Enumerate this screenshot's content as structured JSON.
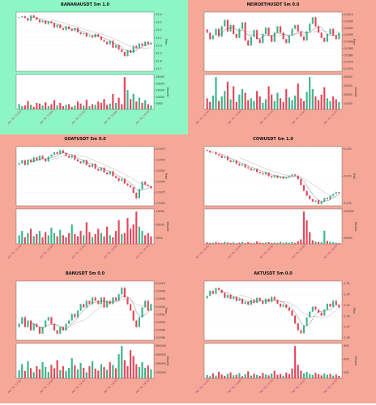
{
  "colors": {
    "up": "#3fb48a",
    "down": "#e2485a",
    "ma_dark": "#555555",
    "ma_light": "#b59a9a"
  },
  "chart_data": [
    {
      "type": "candlestick",
      "title": "BANANAUSDT 5m 1.0",
      "background": "#8ef5c4",
      "ylabel": "Price",
      "volume_label": "Volume",
      "ylim": [
        22.7,
        23.4
      ],
      "yticks": [
        "23.4",
        "23.3",
        "23.2",
        "23.1",
        "23.0",
        "22.9",
        "22.8",
        "22.7"
      ],
      "vol_ticks": [
        "25000",
        "20000",
        "15000",
        "10000",
        "5000"
      ],
      "xticks": [
        "Apr 16, 12:30",
        "Apr 16, 13:00",
        "Apr 16, 13:30",
        "Apr 16, 14:00",
        "Apr 16, 14:30"
      ],
      "closes": [
        23.34,
        23.35,
        23.33,
        23.3,
        23.36,
        23.34,
        23.31,
        23.28,
        23.3,
        23.26,
        23.29,
        23.27,
        23.22,
        23.25,
        23.21,
        23.19,
        23.23,
        23.2,
        23.18,
        23.21,
        23.16,
        23.14,
        23.15,
        23.11,
        23.12,
        23.1,
        23.14,
        23.11,
        23.07,
        23.05,
        23.02,
        23.06,
        22.98,
        23.01,
        22.96,
        22.93,
        22.88,
        22.95,
        22.92,
        23.0,
        22.97,
        23.03,
        23.0,
        23.05,
        23.02,
        23.04
      ],
      "volumes": [
        4000,
        2500,
        3000,
        6500,
        3500,
        2000,
        5000,
        4500,
        3000,
        5500,
        2500,
        4000,
        7000,
        3000,
        5000,
        2500,
        3500,
        4000,
        2000,
        3000,
        6000,
        4500,
        3000,
        7500,
        2500,
        4000,
        3500,
        6000,
        5000,
        8000,
        3500,
        4500,
        12000,
        5000,
        9000,
        4000,
        25000,
        15000,
        8000,
        12000,
        6000,
        9000,
        5000,
        7000,
        4000,
        3000
      ]
    },
    {
      "type": "candlestick",
      "title": "NEIROETHUSDT 5m 0.0",
      "background": "#f5a898",
      "ylabel": "Price",
      "volume_label": "Volume",
      "ylim": [
        0.0366,
        0.0412
      ],
      "yticks": [
        "0.0410",
        "0.0405",
        "0.0400",
        "0.0395",
        "0.0390",
        "0.0385",
        "0.0380",
        "0.0375",
        "0.0370"
      ],
      "vol_ticks": [
        "40000",
        "30000",
        "20000",
        "10000"
      ],
      "xticks": [
        "Apr 16, 12:30",
        "Apr 16, 13:00",
        "Apr 16, 13:30",
        "Apr 16, 14:00",
        "Apr 16, 14:30"
      ],
      "closes": [
        0.0396,
        0.0391,
        0.0394,
        0.0399,
        0.0393,
        0.0401,
        0.0406,
        0.0397,
        0.0402,
        0.0395,
        0.0392,
        0.0399,
        0.0404,
        0.039,
        0.0386,
        0.0393,
        0.0398,
        0.0391,
        0.0388,
        0.0395,
        0.04,
        0.0394,
        0.0389,
        0.0396,
        0.0401,
        0.0396,
        0.0391,
        0.0388,
        0.0394,
        0.0399,
        0.0402,
        0.0397,
        0.0393,
        0.039,
        0.0397,
        0.0403,
        0.0408,
        0.0401,
        0.0396,
        0.0392,
        0.0389,
        0.0395,
        0.0399,
        0.0394,
        0.0391,
        0.0396
      ],
      "volumes": [
        12000,
        8000,
        15000,
        35000,
        9000,
        14000,
        20000,
        30000,
        11000,
        25000,
        8000,
        16000,
        22000,
        18000,
        10000,
        12000,
        9000,
        20000,
        14000,
        7000,
        11000,
        25000,
        16000,
        9000,
        18000,
        12000,
        8000,
        22000,
        13000,
        10000,
        15000,
        28000,
        12000,
        9000,
        19000,
        35000,
        22000,
        14000,
        10000,
        16000,
        24000,
        12000,
        9000,
        14000,
        11000,
        8000
      ]
    },
    {
      "type": "candlestick",
      "title": "GOATUSDT 5m 0.0",
      "background": "#f5a898",
      "ylabel": "Price",
      "volume_label": "Volume",
      "ylim": [
        0.3425,
        0.3585
      ],
      "yticks": [
        "0.3575",
        "0.3550",
        "0.3525",
        "0.3500",
        "0.3475",
        "0.3450"
      ],
      "vol_ticks": [
        "15000",
        "10000",
        "5000"
      ],
      "xticks": [
        "Apr 16, 12:30",
        "Apr 16, 13:00",
        "Apr 16, 13:30",
        "Apr 16, 14:00",
        "Apr 16, 14:30"
      ],
      "closes": [
        0.354,
        0.3548,
        0.3535,
        0.355,
        0.3543,
        0.3556,
        0.3548,
        0.356,
        0.3552,
        0.3545,
        0.3558,
        0.3563,
        0.357,
        0.3565,
        0.3575,
        0.3568,
        0.356,
        0.3555,
        0.3562,
        0.355,
        0.3545,
        0.354,
        0.3548,
        0.3535,
        0.353,
        0.3538,
        0.3525,
        0.352,
        0.3528,
        0.3515,
        0.351,
        0.3518,
        0.3505,
        0.35,
        0.3492,
        0.3498,
        0.3485,
        0.348,
        0.3475,
        0.346,
        0.3445,
        0.347,
        0.349,
        0.3482,
        0.3478,
        0.3472
      ],
      "volumes": [
        4000,
        6000,
        3000,
        5000,
        7000,
        3500,
        4500,
        6000,
        3000,
        5500,
        4000,
        7500,
        5000,
        3500,
        6500,
        4000,
        3000,
        5000,
        9000,
        4500,
        3500,
        6000,
        4000,
        10000,
        5500,
        3000,
        4500,
        7000,
        5000,
        3500,
        8000,
        4000,
        3000,
        6000,
        11000,
        4500,
        5000,
        12000,
        7000,
        9000,
        15000,
        8000,
        6000,
        4000,
        5000,
        3500
      ]
    },
    {
      "type": "candlestick",
      "title": "COWUSDT 5m 1.0",
      "background": "#f5a898",
      "ylabel": "Price",
      "volume_label": "Volume",
      "ylim": [
        0.2355,
        0.2455
      ],
      "yticks": [
        "0.245",
        "0.240",
        "0.235"
      ],
      "vol_ticks": [
        "100000",
        "50000"
      ],
      "xticks": [
        "Apr 16, 12:30",
        "Apr 16, 13:00",
        "Apr 16, 13:30",
        "Apr 16, 14:00",
        "Apr 16, 14:30"
      ],
      "closes": [
        0.2448,
        0.2445,
        0.2446,
        0.2442,
        0.244,
        0.2436,
        0.2438,
        0.2432,
        0.2429,
        0.2431,
        0.2426,
        0.2423,
        0.2425,
        0.242,
        0.2418,
        0.2415,
        0.2417,
        0.2412,
        0.241,
        0.2408,
        0.2411,
        0.2405,
        0.2403,
        0.2406,
        0.2402,
        0.2404,
        0.2401,
        0.2403,
        0.2405,
        0.2408,
        0.2406,
        0.24,
        0.239,
        0.238,
        0.2372,
        0.2366,
        0.2362,
        0.2364,
        0.2358,
        0.2362,
        0.2368,
        0.2366,
        0.2372,
        0.2375,
        0.2378,
        0.2376
      ],
      "volumes": [
        5000,
        3000,
        4000,
        6000,
        3500,
        2500,
        7000,
        4500,
        3000,
        5000,
        2000,
        4000,
        6500,
        3000,
        5500,
        2500,
        3500,
        8000,
        4000,
        3000,
        5000,
        6000,
        2500,
        4500,
        3500,
        7000,
        3000,
        5000,
        4000,
        6000,
        3500,
        9000,
        15000,
        110000,
        80000,
        40000,
        12000,
        8000,
        6000,
        5000,
        45000,
        10000,
        7000,
        5000,
        4000,
        3000
      ]
    },
    {
      "type": "candlestick",
      "title": "BANUSDT 5m 0.0",
      "background": "#f5a898",
      "ylabel": "Price",
      "volume_label": "Volume",
      "ylim": [
        0.0394,
        0.0412
      ],
      "yticks": [
        "0.0410",
        "0.0408",
        "0.0406",
        "0.0404",
        "0.0402",
        "0.0400",
        "0.0398",
        "0.0396"
      ],
      "vol_ticks": [
        "800000",
        "600000",
        "400000",
        "200000"
      ],
      "xticks": [
        "Apr 16, 12:30",
        "Apr 16, 13:00",
        "Apr 16, 13:30",
        "Apr 16, 14:00",
        "Apr 16, 14:30"
      ],
      "closes": [
        0.0399,
        0.0401,
        0.0398,
        0.04,
        0.0397,
        0.0399,
        0.0398,
        0.0396,
        0.0398,
        0.04,
        0.0401,
        0.0399,
        0.0397,
        0.0396,
        0.0398,
        0.0397,
        0.0399,
        0.04,
        0.0402,
        0.0401,
        0.0403,
        0.0405,
        0.0404,
        0.0406,
        0.0405,
        0.0407,
        0.0406,
        0.0405,
        0.0407,
        0.0404,
        0.0406,
        0.0405,
        0.0407,
        0.0406,
        0.0408,
        0.041,
        0.0407,
        0.0405,
        0.0403,
        0.04,
        0.0398,
        0.0401,
        0.0404,
        0.0406,
        0.0403,
        0.0405
      ],
      "volumes": [
        200000,
        350000,
        180000,
        420000,
        250000,
        150000,
        300000,
        220000,
        400000,
        280000,
        160000,
        330000,
        250000,
        450000,
        200000,
        300000,
        180000,
        260000,
        500000,
        320000,
        220000,
        380000,
        260000,
        150000,
        300000,
        420000,
        240000,
        190000,
        350000,
        280000,
        210000,
        400000,
        330000,
        250000,
        600000,
        800000,
        450000,
        300000,
        700000,
        550000,
        350000,
        280000,
        400000,
        260000,
        320000,
        220000
      ]
    },
    {
      "type": "candlestick",
      "title": "AKTUSDT 5m 0.0",
      "background": "#f5a898",
      "ylabel": "Price",
      "volume_label": "Volume",
      "ylim": [
        1.255,
        1.315
      ],
      "yticks": [
        "1.31",
        "1.30",
        "1.29",
        "1.28",
        "1.27",
        "1.26"
      ],
      "vol_ticks": [
        "600",
        "400",
        "200"
      ],
      "xticks": [
        "Apr 16, 12:30",
        "Apr 16, 13:00",
        "Apr 16, 13:30",
        "Apr 16, 14:00",
        "Apr 16, 14:30"
      ],
      "closes": [
        1.3,
        1.305,
        1.302,
        1.308,
        1.306,
        1.303,
        1.298,
        1.301,
        1.297,
        1.299,
        1.295,
        1.297,
        1.292,
        1.294,
        1.291,
        1.296,
        1.293,
        1.298,
        1.295,
        1.292,
        1.297,
        1.294,
        1.299,
        1.296,
        1.292,
        1.289,
        1.291,
        1.288,
        1.285,
        1.28,
        1.272,
        1.265,
        1.262,
        1.27,
        1.278,
        1.284,
        1.289,
        1.286,
        1.283,
        1.28,
        1.286,
        1.292,
        1.289,
        1.295,
        1.291,
        1.288
      ],
      "volumes": [
        60,
        40,
        90,
        50,
        120,
        70,
        45,
        80,
        110,
        55,
        65,
        95,
        40,
        75,
        130,
        50,
        85,
        60,
        45,
        100,
        70,
        55,
        90,
        140,
        65,
        80,
        50,
        105,
        75,
        180,
        600,
        250,
        140,
        90,
        120,
        80,
        60,
        100,
        75,
        55,
        90,
        65,
        85,
        50,
        70,
        45
      ]
    }
  ]
}
